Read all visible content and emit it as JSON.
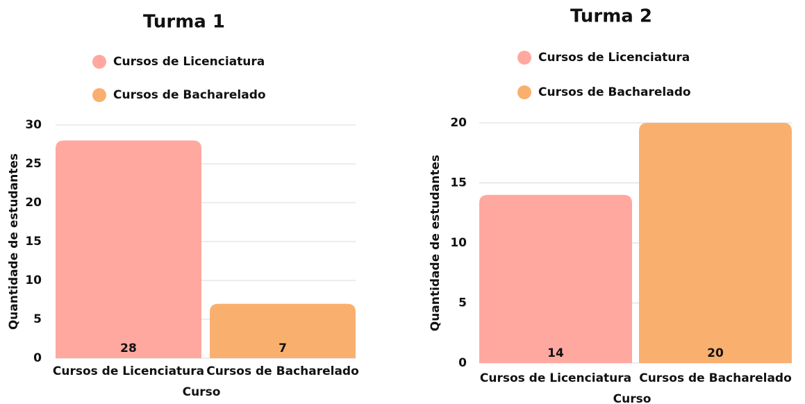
{
  "chart_data": [
    {
      "type": "bar",
      "title": "Turma 1",
      "categories": [
        "Cursos de Licenciatura",
        "Cursos de Bacharelado"
      ],
      "values": [
        28,
        7
      ],
      "colors": [
        "#ffa8a0",
        "#f9b06e"
      ],
      "xlabel": "Curso",
      "ylabel": "Quantidade de estudantes",
      "ylim": [
        0,
        30
      ],
      "yticks": [
        0,
        5,
        10,
        15,
        20,
        25,
        30
      ],
      "grid": true,
      "legend": "top"
    },
    {
      "type": "bar",
      "title": "Turma 2",
      "categories": [
        "Cursos de Licenciatura",
        "Cursos de Bacharelado"
      ],
      "values": [
        14,
        20
      ],
      "colors": [
        "#ffa8a0",
        "#f9b06e"
      ],
      "xlabel": "Curso",
      "ylabel": "Quantidade de estudantes",
      "ylim": [
        0,
        20
      ],
      "yticks": [
        0,
        5,
        10,
        15,
        20
      ],
      "grid": true,
      "legend": "top"
    }
  ]
}
